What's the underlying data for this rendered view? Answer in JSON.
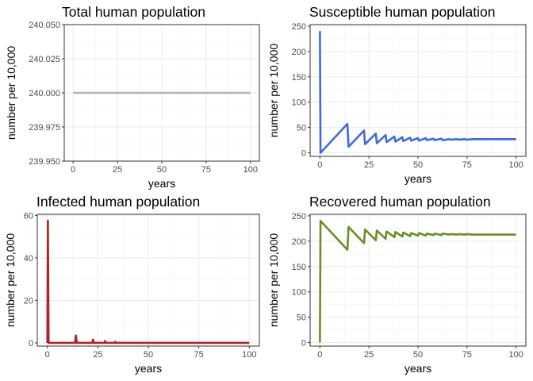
{
  "chart_data": [
    {
      "type": "line",
      "title": "Total human population",
      "xlabel": "years",
      "ylabel": "number per 10,000",
      "xlim": [
        -5,
        105
      ],
      "ylim": [
        239.95,
        240.05
      ],
      "xticks": [
        0,
        25,
        50,
        75,
        100
      ],
      "xtick_labels": [
        "0",
        "25",
        "50",
        "75",
        "100"
      ],
      "yticks": [
        239.95,
        239.975,
        240.0,
        240.025,
        240.05
      ],
      "ytick_labels": [
        "239.950",
        "239.975",
        "240.000",
        "240.025",
        "240.050"
      ],
      "grid": true,
      "series": [
        {
          "color": "#b3b3b3",
          "x": [
            0,
            100
          ],
          "y": [
            240,
            240
          ]
        }
      ]
    },
    {
      "type": "line",
      "title": "Susceptible human population",
      "xlabel": "years",
      "ylabel": "number per 10,000",
      "xlim": [
        -5,
        105
      ],
      "ylim": [
        -7,
        253
      ],
      "xticks": [
        0,
        25,
        50,
        75,
        100
      ],
      "xtick_labels": [
        "0",
        "25",
        "50",
        "75",
        "100"
      ],
      "yticks": [
        0,
        50,
        100,
        150,
        200,
        250
      ],
      "ytick_labels": [
        "0",
        "50",
        "100",
        "150",
        "200",
        "250"
      ],
      "grid": true,
      "series": [
        {
          "color": "#4169e1",
          "x": [
            0,
            0.3,
            14,
            14.6,
            22.5,
            23.0,
            28.5,
            29.0,
            33.5,
            34.0,
            38.0,
            38.5,
            42.0,
            42.5,
            46.0,
            46.5,
            50.0,
            50.5,
            54.0,
            54.5,
            58.0,
            58.5,
            62.0,
            62.5,
            66.0,
            66.5,
            70.0,
            70.5,
            74.0,
            74.5,
            78.0,
            100
          ],
          "y": [
            240,
            0,
            57,
            12,
            44,
            17,
            38,
            19,
            35,
            21,
            32,
            22,
            31,
            23,
            30,
            24,
            29,
            24,
            29,
            25,
            28,
            25,
            28,
            25,
            27,
            26,
            27,
            26,
            27,
            26,
            27,
            27
          ]
        }
      ]
    },
    {
      "type": "line",
      "title": "Infected human population",
      "xlabel": "years",
      "ylabel": "number per 10,000",
      "xlim": [
        -5,
        105
      ],
      "ylim": [
        -1.5,
        60.5
      ],
      "xticks": [
        0,
        25,
        50,
        75,
        100
      ],
      "xtick_labels": [
        "0",
        "25",
        "50",
        "75",
        "100"
      ],
      "yticks": [
        0,
        20,
        40,
        60
      ],
      "ytick_labels": [
        "0",
        "20",
        "40",
        "60"
      ],
      "grid": true,
      "series": [
        {
          "color": "#b22222",
          "x": [
            0,
            0.25,
            0.6,
            1.2,
            13.7,
            14.1,
            14.6,
            22.3,
            22.6,
            23.0,
            28.3,
            28.6,
            29.0,
            33.4,
            33.7,
            34.0,
            100
          ],
          "y": [
            0,
            57.5,
            0,
            0,
            0,
            3.5,
            0,
            0,
            1.6,
            0,
            0,
            0.9,
            0,
            0,
            0.5,
            0,
            0
          ]
        }
      ]
    },
    {
      "type": "line",
      "title": "Recovered human population",
      "xlabel": "years",
      "ylabel": "number per 10,000",
      "xlim": [
        -5,
        105
      ],
      "ylim": [
        -7,
        253
      ],
      "xticks": [
        0,
        25,
        50,
        75,
        100
      ],
      "xtick_labels": [
        "0",
        "25",
        "50",
        "75",
        "100"
      ],
      "yticks": [
        0,
        50,
        100,
        150,
        200,
        250
      ],
      "ytick_labels": [
        "0",
        "50",
        "100",
        "150",
        "200",
        "250"
      ],
      "grid": true,
      "series": [
        {
          "color": "#6b8e23",
          "x": [
            0,
            0.3,
            14,
            14.6,
            22.5,
            23.0,
            28.5,
            29.0,
            33.5,
            34.0,
            38.0,
            38.5,
            42.0,
            42.5,
            46.0,
            46.5,
            50.0,
            50.5,
            54.0,
            54.5,
            58.0,
            58.5,
            62.0,
            62.5,
            66.0,
            66.5,
            70.0,
            70.5,
            74.0,
            74.5,
            78.0,
            100
          ],
          "y": [
            0,
            240,
            183,
            228,
            196,
            223,
            202,
            221,
            205,
            219,
            208,
            218,
            209,
            217,
            210,
            216,
            211,
            216,
            211,
            215,
            212,
            215,
            212,
            215,
            213,
            214,
            213,
            214,
            213,
            214,
            213,
            213
          ]
        }
      ]
    }
  ]
}
